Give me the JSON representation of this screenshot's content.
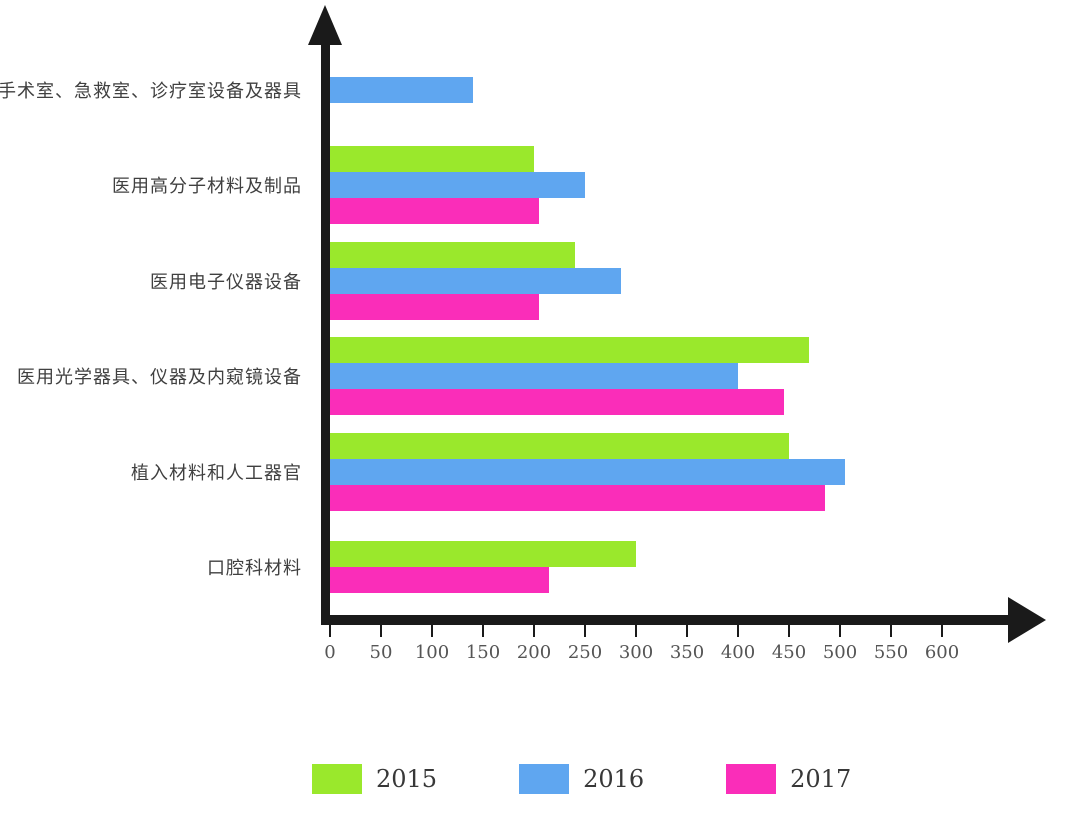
{
  "chart_data": {
    "type": "bar",
    "orientation": "horizontal",
    "title": "",
    "xlabel": "",
    "ylabel": "",
    "grid": false,
    "legend_position": "bottom",
    "xlim": [
      0,
      600
    ],
    "x_ticks": [
      0,
      50,
      100,
      150,
      200,
      250,
      300,
      350,
      400,
      450,
      500,
      550,
      600
    ],
    "categories": [
      "手术室、急救室、诊疗室设备及器具",
      "医用高分子材料及制品",
      "医用电子仪器设备",
      "医用光学器具、仪器及内窥镜设备",
      "植入材料和人工器官",
      "口腔科材料"
    ],
    "series": [
      {
        "name": "2015",
        "color": "#9AE82C",
        "values": [
          null,
          200,
          240,
          470,
          450,
          300
        ]
      },
      {
        "name": "2016",
        "color": "#5FA6F0",
        "values": [
          140,
          250,
          285,
          400,
          505,
          null
        ]
      },
      {
        "name": "2017",
        "color": "#FA2DB9",
        "values": [
          null,
          205,
          205,
          445,
          485,
          215
        ]
      }
    ]
  },
  "style": {
    "axis_color": "#1a1a1a",
    "category_text_color": "#404040",
    "tick_text_color": "#555555",
    "legend_text_color": "#383838",
    "background_color": "#ffffff"
  }
}
